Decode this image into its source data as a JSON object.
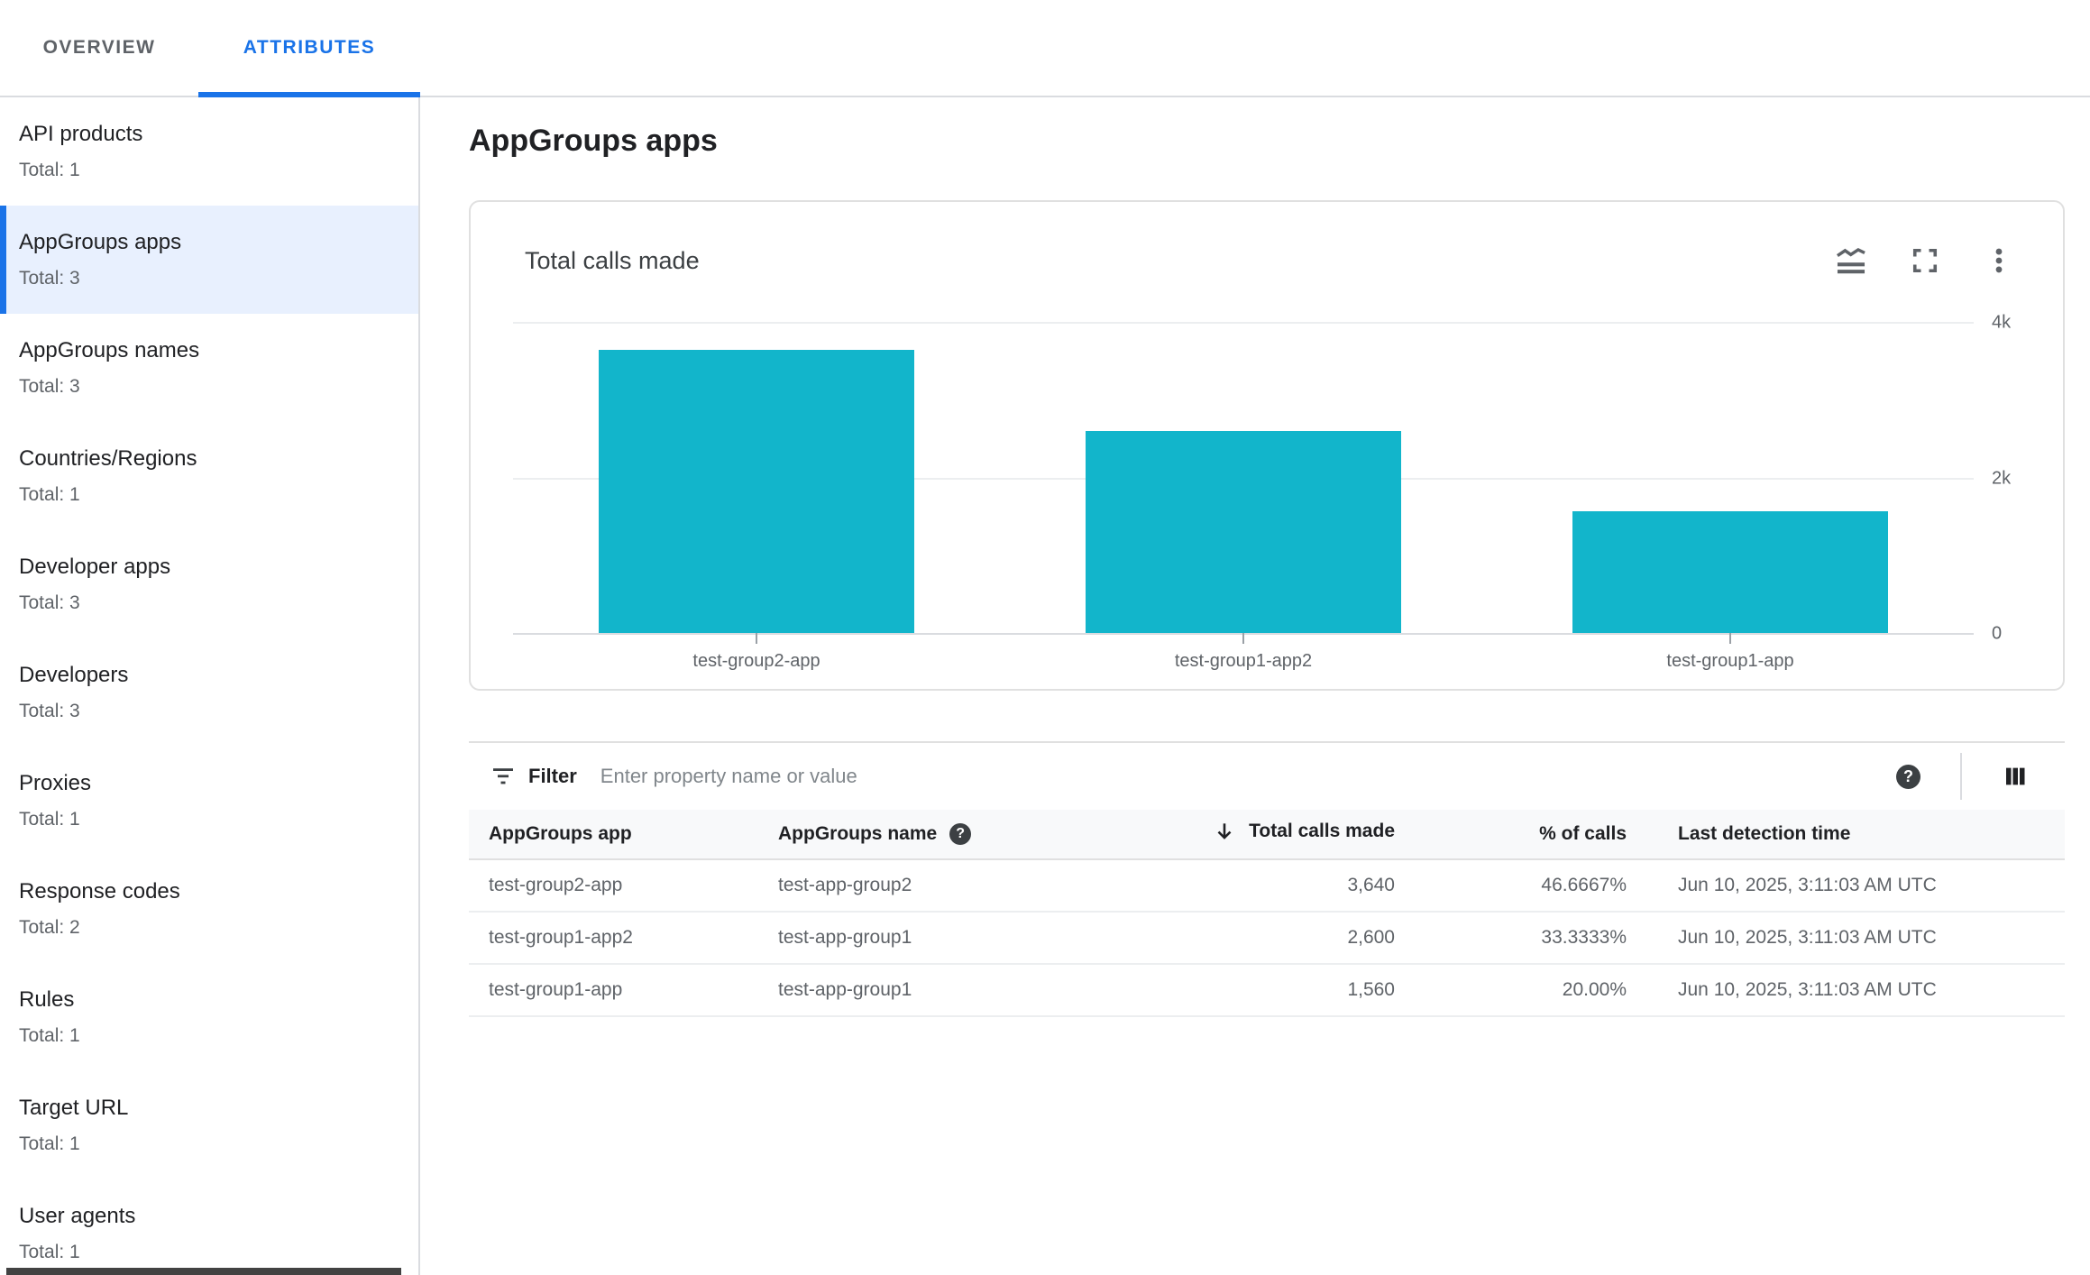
{
  "tabs": [
    {
      "label": "OVERVIEW",
      "active": false
    },
    {
      "label": "ATTRIBUTES",
      "active": true
    }
  ],
  "sidebar": {
    "items": [
      {
        "label": "API products",
        "total": "Total: 1",
        "selected": false
      },
      {
        "label": "AppGroups apps",
        "total": "Total: 3",
        "selected": true
      },
      {
        "label": "AppGroups names",
        "total": "Total: 3",
        "selected": false
      },
      {
        "label": "Countries/Regions",
        "total": "Total: 1",
        "selected": false
      },
      {
        "label": "Developer apps",
        "total": "Total: 3",
        "selected": false
      },
      {
        "label": "Developers",
        "total": "Total: 3",
        "selected": false
      },
      {
        "label": "Proxies",
        "total": "Total: 1",
        "selected": false
      },
      {
        "label": "Response codes",
        "total": "Total: 2",
        "selected": false
      },
      {
        "label": "Rules",
        "total": "Total: 1",
        "selected": false
      },
      {
        "label": "Target URL",
        "total": "Total: 1",
        "selected": false
      },
      {
        "label": "User agents",
        "total": "Total: 1",
        "selected": false
      }
    ]
  },
  "page": {
    "title": "AppGroups apps"
  },
  "chart_card": {
    "title": "Total calls made",
    "icons": [
      "area-chart-icon",
      "fullscreen-icon",
      "more-vert-icon"
    ]
  },
  "chart_data": {
    "type": "bar",
    "title": "Total calls made",
    "categories": [
      "test-group2-app",
      "test-group1-app2",
      "test-group1-app"
    ],
    "values": [
      3640,
      2600,
      1560
    ],
    "xlabel": "",
    "ylabel": "",
    "ylim": [
      0,
      4000
    ],
    "yticks": [
      {
        "value": 4000,
        "label": "4k"
      },
      {
        "value": 2000,
        "label": "2k"
      },
      {
        "value": 0,
        "label": "0"
      }
    ],
    "bar_color": "#12b5cb",
    "grid": "horizontal",
    "legend": "none"
  },
  "toolbar": {
    "filter_label": "Filter",
    "filter_placeholder": "Enter property name or value",
    "filter_value": ""
  },
  "table": {
    "columns": [
      {
        "label": "AppGroups app",
        "align": "left"
      },
      {
        "label": "AppGroups name",
        "align": "left",
        "help": true
      },
      {
        "label": "Total calls made",
        "align": "right",
        "sorted": "desc"
      },
      {
        "label": "% of calls",
        "align": "right"
      },
      {
        "label": "Last detection time",
        "align": "left"
      }
    ],
    "rows": [
      [
        "test-group2-app",
        "test-app-group2",
        "3,640",
        "46.6667%",
        "Jun 10, 2025, 3:11:03 AM UTC"
      ],
      [
        "test-group1-app2",
        "test-app-group1",
        "2,600",
        "33.3333%",
        "Jun 10, 2025, 3:11:03 AM UTC"
      ],
      [
        "test-group1-app",
        "test-app-group1",
        "1,560",
        "20.00%",
        "Jun 10, 2025, 3:11:03 AM UTC"
      ]
    ]
  },
  "colors": {
    "accent": "#1a73e8",
    "bar": "#12b5cb",
    "selected_bg": "#e8f0fe",
    "header_bg": "#f8f9fa"
  }
}
